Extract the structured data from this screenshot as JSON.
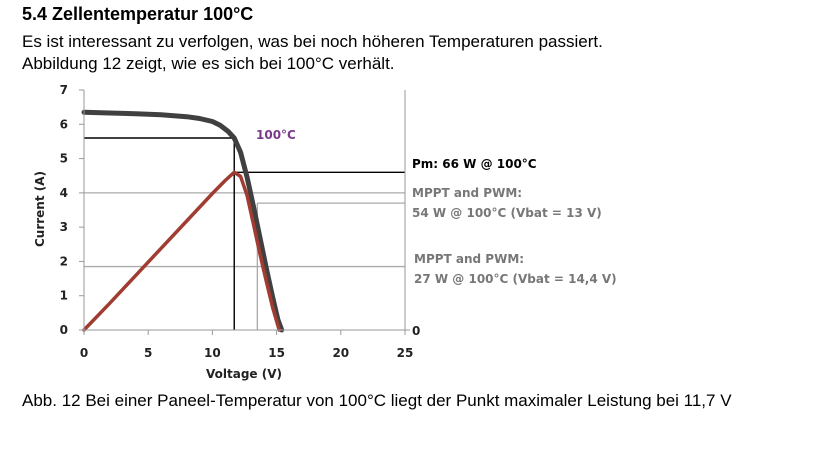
{
  "heading": "5.4 Zellentemperatur 100°C",
  "intro_line1": "Es ist interessant zu verfolgen, was bei noch höheren Temperaturen passiert.",
  "intro_line2": "Abbildung 12 zeigt, wie es sich bei 100°C verhält.",
  "caption": "Abb. 12 Bei einer Paneel-Temperatur von 100°C liegt der Punkt maximaler Leistung bei 11,7 V",
  "chart_data": {
    "type": "line",
    "xlabel": "Voltage (V)",
    "ylabel": "Current (A)",
    "xlim": [
      0,
      25
    ],
    "ylim": [
      0,
      7
    ],
    "xticks": [
      0,
      5,
      10,
      15,
      20,
      25
    ],
    "yticks": [
      0,
      1,
      2,
      3,
      4,
      5,
      6,
      7
    ],
    "right_axis_tick": "0",
    "grid": false,
    "series": [
      {
        "role": "iv_curve",
        "color": "#404040",
        "x": [
          0,
          2,
          4,
          6,
          8,
          9,
          10,
          10.6,
          11.2,
          11.7,
          12.2,
          12.7,
          13.2,
          13.7,
          14.2,
          14.7,
          15.1,
          15.4
        ],
        "y": [
          6.35,
          6.33,
          6.31,
          6.28,
          6.22,
          6.17,
          6.08,
          5.97,
          5.8,
          5.6,
          5.18,
          4.45,
          3.6,
          2.7,
          1.8,
          0.95,
          0.3,
          0
        ]
      },
      {
        "role": "power_curve",
        "color": "#a03c32",
        "x": [
          0,
          2,
          4,
          6,
          8,
          10,
          11,
          11.7,
          12.2,
          12.7,
          13.2,
          13.7,
          14.2,
          14.7,
          15.2
        ],
        "y": [
          0,
          0.78,
          1.58,
          2.38,
          3.18,
          3.98,
          4.36,
          4.6,
          4.48,
          3.92,
          3.08,
          2.22,
          1.42,
          0.65,
          0
        ]
      }
    ],
    "reference_lines": [
      {
        "id": "mpp",
        "color": "#000000",
        "vline_x": 11.7,
        "hline_iv_y": 5.6,
        "hline_right_y": 4.6
      },
      {
        "id": "mppt1",
        "color": "#aaaaaa",
        "vline_x": 13.5,
        "hline_y": 4.0,
        "marker_y": 3.7
      },
      {
        "id": "mppt2",
        "color": "#aaaaaa",
        "hline_y": 1.85
      }
    ],
    "annotations": {
      "temp_label": "100°C",
      "temp_color": "#7a3a8c",
      "pm_label": "Pm: 66 W @ 100°C",
      "mppt1_line1": "MPPT and PWM:",
      "mppt1_line2": "54 W @ 100°C (Vbat = 13 V)",
      "mppt2_line1": "MPPT and PWM:",
      "mppt2_line2": "27 W @ 100°C (Vbat = 14,4 V)",
      "label_color": "#777777"
    }
  }
}
